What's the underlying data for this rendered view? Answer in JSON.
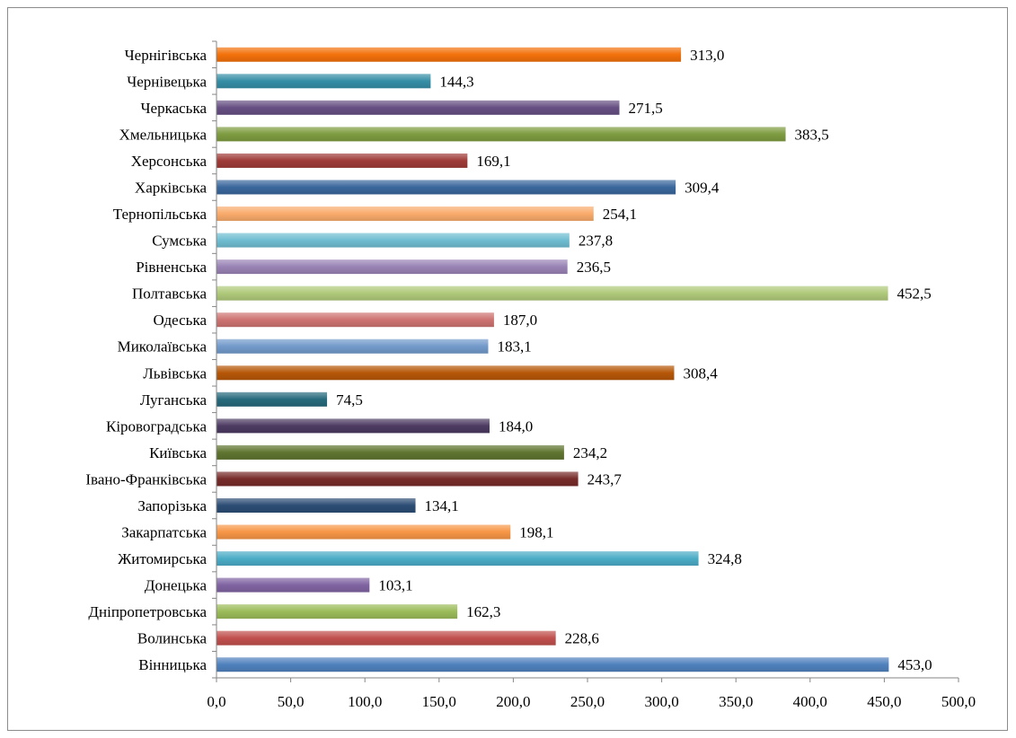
{
  "chart_data": {
    "type": "bar",
    "orientation": "horizontal",
    "categories": [
      "Вінницька",
      "Волинська",
      "Дніпропетровська",
      "Донецька",
      "Житомирська",
      "Закарпатська",
      "Запорізька",
      "Івано-Франківська",
      "Київська",
      "Кіровоградська",
      "Луганська",
      "Львівська",
      "Миколаївська",
      "Одеська",
      "Полтавська",
      "Рівненська",
      "Сумська",
      "Тернопільська",
      "Харківська",
      "Херсонська",
      "Хмельницька",
      "Черкаська",
      "Чернівецька",
      "Чернігівська"
    ],
    "values": [
      453.0,
      228.6,
      162.3,
      103.1,
      324.8,
      198.1,
      134.1,
      243.7,
      234.2,
      184.0,
      74.5,
      308.4,
      183.1,
      187.0,
      452.5,
      236.5,
      237.8,
      254.1,
      309.4,
      169.1,
      383.5,
      271.5,
      144.3,
      313.0
    ],
    "value_labels": [
      "453,0",
      "228,6",
      "162,3",
      "103,1",
      "324,8",
      "198,1",
      "134,1",
      "243,7",
      "234,2",
      "184,0",
      "74,5",
      "308,4",
      "183,1",
      "187,0",
      "452,5",
      "236,5",
      "237,8",
      "254,1",
      "309,4",
      "169,1",
      "383,5",
      "271,5",
      "144,3",
      "313,0"
    ],
    "colors": [
      "#4f81bd",
      "#c0504d",
      "#9bbb59",
      "#8064a2",
      "#4bacc6",
      "#f79646",
      "#2c4d75",
      "#772c2a",
      "#5f7530",
      "#4d3b62",
      "#276a7c",
      "#b65708",
      "#729aca",
      "#cd7371",
      "#afc97a",
      "#9983b5",
      "#6fbdd1",
      "#f9ab6b",
      "#3a679c",
      "#9f3b38",
      "#7e9c40",
      "#664f83",
      "#358ea6",
      "#f3710a"
    ],
    "xlim": [
      0,
      500
    ],
    "xticks": [
      0,
      50,
      100,
      150,
      200,
      250,
      300,
      350,
      400,
      450,
      500
    ],
    "xtick_labels": [
      "0,0",
      "50,0",
      "100,0",
      "150,0",
      "200,0",
      "250,0",
      "300,0",
      "350,0",
      "400,0",
      "450,0",
      "500,0"
    ],
    "title": "",
    "xlabel": "",
    "ylabel": "",
    "grid": false,
    "legend": false
  }
}
